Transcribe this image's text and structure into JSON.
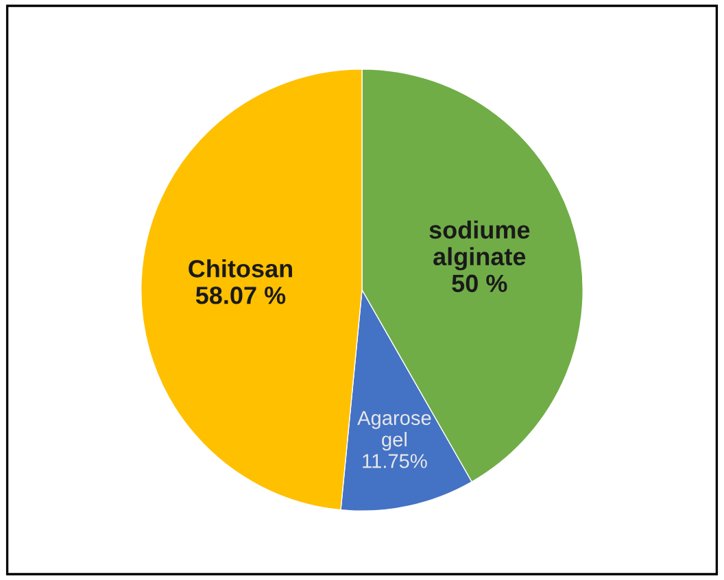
{
  "chart_data": {
    "type": "pie",
    "categories": [
      "sodiume alginate",
      "Agarose gel",
      "Chitosan"
    ],
    "values": [
      50,
      11.75,
      58.07
    ],
    "colors": [
      "#70ad47",
      "#4472c4",
      "#ffc000"
    ],
    "value_labels": [
      "50 %",
      "11.75%",
      "58.07 %"
    ],
    "legend": false
  }
}
